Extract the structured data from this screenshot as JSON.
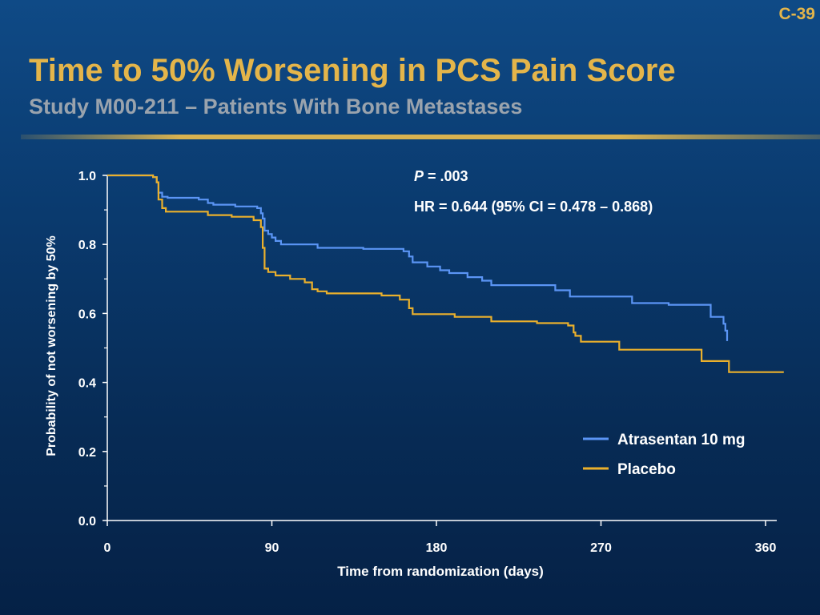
{
  "slide": {
    "number": "C-39",
    "title": "Time to 50% Worsening in PCS Pain Score",
    "subtitle": "Study M00-211 – Patients With Bone Metastases"
  },
  "colors": {
    "background": "#0a3a6e",
    "title": "#e4b54a",
    "subtitle": "#9aa3ad",
    "atrasentan": "#5b95f5",
    "placebo": "#eab02c"
  },
  "chart_data": {
    "type": "line",
    "subtype": "kaplan-meier-step",
    "xlabel": "Time from randomization (days)",
    "ylabel": "Probability of not worsening by 50%",
    "xlim": [
      0,
      365
    ],
    "ylim": [
      0,
      1.0
    ],
    "xticks": [
      0,
      90,
      180,
      270,
      360
    ],
    "yticks": [
      0.0,
      0.2,
      0.4,
      0.6,
      0.8,
      1.0
    ],
    "xtick_labels": [
      "0",
      "90",
      "180",
      "270",
      "360"
    ],
    "ytick_labels": [
      "0.0",
      "0.2",
      "0.4",
      "0.6",
      "0.8",
      "1.0"
    ],
    "legend_position": "right",
    "annotations": {
      "p_label": "P",
      "p_value": " = .003",
      "hr": "HR = 0.644 (95% CI = 0.478 – 0.868)"
    },
    "series": [
      {
        "name": "Atrasentan 10 mg",
        "color": "#5b95f5",
        "points": [
          [
            0,
            1.0
          ],
          [
            25,
            0.995
          ],
          [
            27,
            0.98
          ],
          [
            28,
            0.95
          ],
          [
            30,
            0.938
          ],
          [
            33,
            0.935
          ],
          [
            50,
            0.93
          ],
          [
            55,
            0.92
          ],
          [
            58,
            0.915
          ],
          [
            70,
            0.91
          ],
          [
            82,
            0.905
          ],
          [
            84,
            0.89
          ],
          [
            85,
            0.875
          ],
          [
            86,
            0.84
          ],
          [
            88,
            0.83
          ],
          [
            90,
            0.82
          ],
          [
            92,
            0.81
          ],
          [
            95,
            0.8
          ],
          [
            99,
            0.8
          ],
          [
            115,
            0.79
          ],
          [
            140,
            0.787
          ],
          [
            162,
            0.78
          ],
          [
            165,
            0.765
          ],
          [
            167,
            0.748
          ],
          [
            175,
            0.736
          ],
          [
            182,
            0.725
          ],
          [
            187,
            0.717
          ],
          [
            197,
            0.705
          ],
          [
            205,
            0.695
          ],
          [
            210,
            0.682
          ],
          [
            245,
            0.667
          ],
          [
            253,
            0.649
          ],
          [
            287,
            0.63
          ],
          [
            307,
            0.625
          ],
          [
            330,
            0.59
          ],
          [
            337,
            0.57
          ],
          [
            338,
            0.55
          ],
          [
            339,
            0.52
          ]
        ]
      },
      {
        "name": "Placebo",
        "color": "#eab02c",
        "points": [
          [
            0,
            1.0
          ],
          [
            25,
            0.995
          ],
          [
            27,
            0.98
          ],
          [
            28,
            0.93
          ],
          [
            30,
            0.905
          ],
          [
            32,
            0.895
          ],
          [
            55,
            0.885
          ],
          [
            68,
            0.88
          ],
          [
            80,
            0.87
          ],
          [
            84,
            0.85
          ],
          [
            85,
            0.79
          ],
          [
            86,
            0.73
          ],
          [
            88,
            0.72
          ],
          [
            92,
            0.71
          ],
          [
            100,
            0.7
          ],
          [
            108,
            0.69
          ],
          [
            112,
            0.67
          ],
          [
            115,
            0.664
          ],
          [
            120,
            0.658
          ],
          [
            150,
            0.652
          ],
          [
            160,
            0.64
          ],
          [
            165,
            0.615
          ],
          [
            167,
            0.598
          ],
          [
            190,
            0.59
          ],
          [
            210,
            0.577
          ],
          [
            235,
            0.572
          ],
          [
            252,
            0.565
          ],
          [
            255,
            0.545
          ],
          [
            256,
            0.535
          ],
          [
            259,
            0.518
          ],
          [
            280,
            0.495
          ],
          [
            325,
            0.462
          ],
          [
            340,
            0.43
          ],
          [
            370,
            0.43
          ]
        ]
      }
    ]
  }
}
